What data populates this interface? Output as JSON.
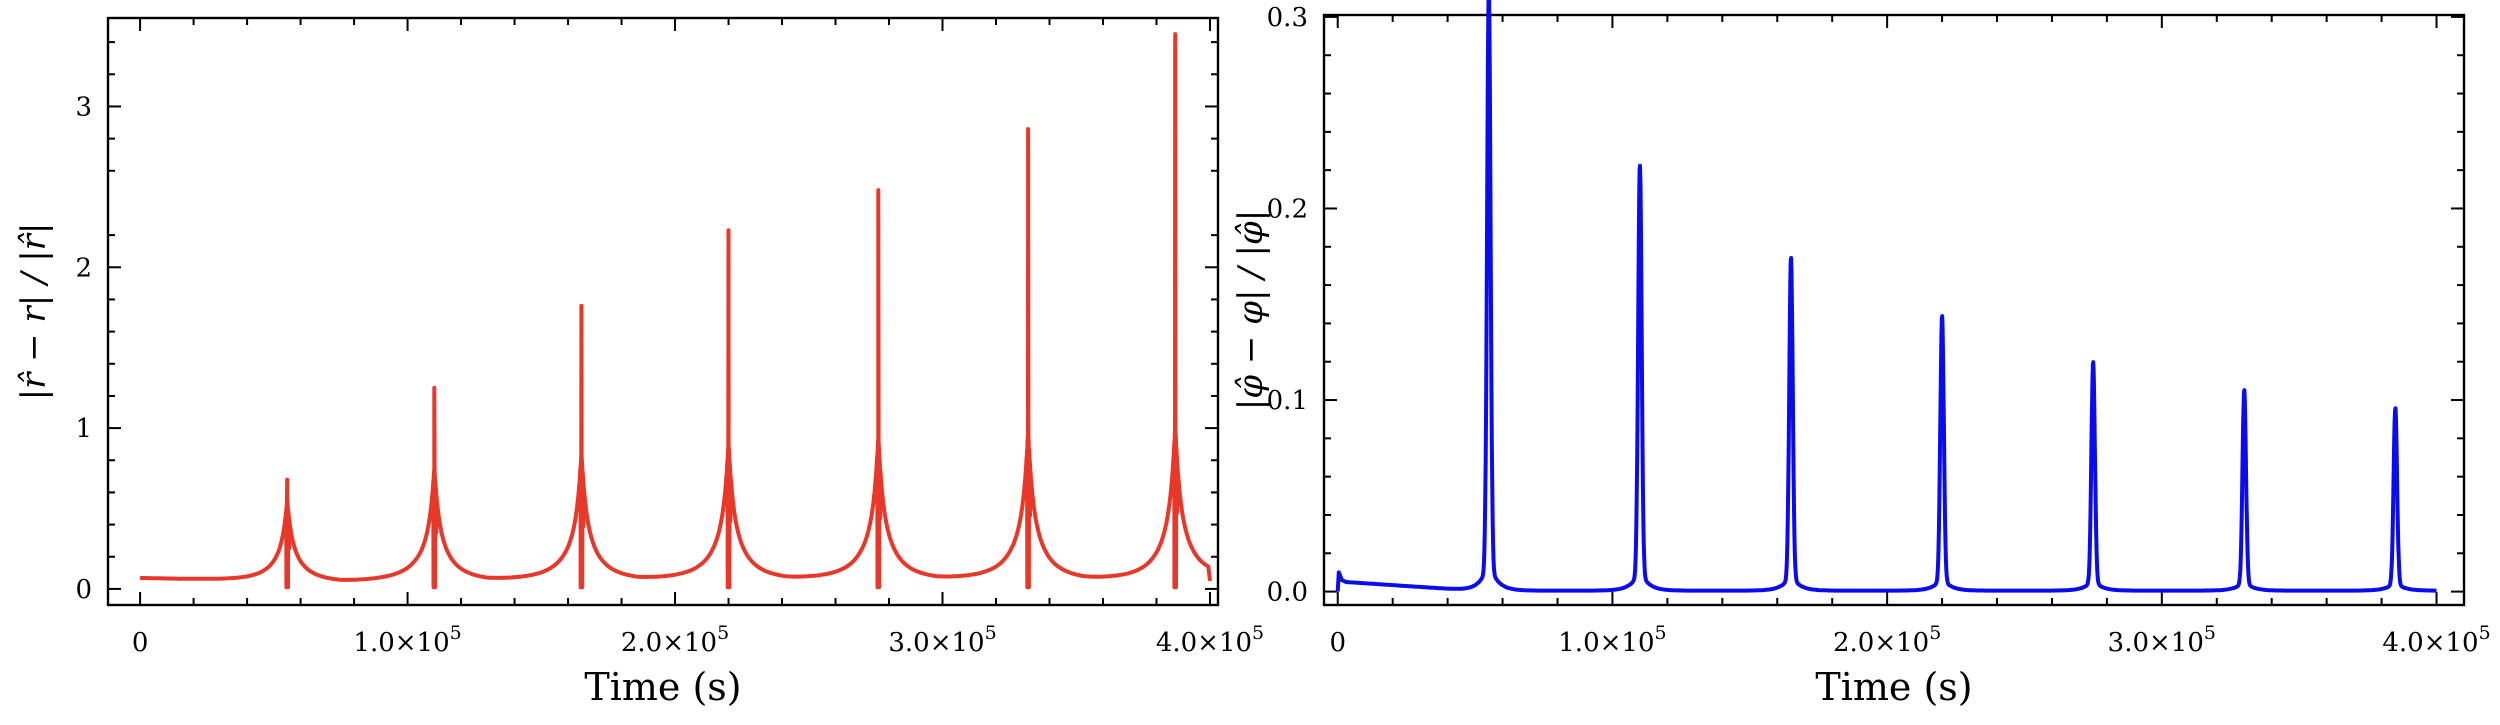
{
  "chart_data": [
    {
      "type": "line",
      "title": "",
      "xlabel": "Time (s)",
      "ylabel": "|r̂ − r| / |r̂|",
      "color": "#e8382a",
      "xlim": [
        -12000,
        403000
      ],
      "ylim": [
        -0.1,
        3.55
      ],
      "xticks": [
        0,
        100000,
        200000,
        300000,
        400000
      ],
      "xtick_labels": [
        {
          "mant": "0",
          "exp": ""
        },
        {
          "mant": "1.0×10",
          "exp": "5"
        },
        {
          "mant": "2.0×10",
          "exp": "5"
        },
        {
          "mant": "3.0×10",
          "exp": "5"
        },
        {
          "mant": "4.0×10",
          "exp": "5"
        }
      ],
      "yticks": [
        0,
        1,
        2,
        3
      ],
      "ytick_labels": [
        "0",
        "1",
        "2",
        "3"
      ],
      "baseline": 0.005,
      "dips": [
        {
          "t": 75000,
          "v": 0.0
        },
        {
          "t": 130000,
          "v": 0.0
        },
        {
          "t": 186000,
          "v": 0.0
        },
        {
          "t": 242000,
          "v": 0.0
        },
        {
          "t": 298000,
          "v": 0.0
        },
        {
          "t": 353000,
          "v": 0.0
        }
      ],
      "end_value": 0.05,
      "x_end": 400000,
      "peaks": [
        {
          "t": 55000,
          "peak": 0.68,
          "shoulder": 0.42,
          "zero_after": 0.01
        },
        {
          "t": 110000,
          "peak": 1.25,
          "shoulder": 0.58,
          "zero_after": 0.01
        },
        {
          "t": 165000,
          "peak": 1.76,
          "shoulder": 0.65,
          "zero_after": 0.01
        },
        {
          "t": 220000,
          "peak": 2.23,
          "shoulder": 0.7,
          "zero_after": 0.01
        },
        {
          "t": 276000,
          "peak": 2.48,
          "shoulder": 0.73,
          "zero_after": 0.01
        },
        {
          "t": 332000,
          "peak": 2.86,
          "shoulder": 0.76,
          "zero_after": 0.01
        },
        {
          "t": 387000,
          "peak": 3.45,
          "shoulder": 0.79,
          "zero_after": 0.01
        }
      ]
    },
    {
      "type": "line",
      "title": "",
      "xlabel": "Time (s)",
      "ylabel": "|φ̂ − φ| / |φ̂|",
      "color": "#0b0bf0",
      "xlim": [
        -5000,
        410000
      ],
      "ylim": [
        -0.007,
        0.301
      ],
      "xticks": [
        0,
        100000,
        200000,
        300000,
        400000
      ],
      "xtick_labels": [
        {
          "mant": "0",
          "exp": ""
        },
        {
          "mant": "1.0×10",
          "exp": "5"
        },
        {
          "mant": "2.0×10",
          "exp": "5"
        },
        {
          "mant": "3.0×10",
          "exp": "5"
        },
        {
          "mant": "4.0×10",
          "exp": "5"
        }
      ],
      "yticks": [
        0,
        0.1,
        0.2,
        0.3
      ],
      "ytick_labels": [
        "0.0",
        "0.1",
        "0.2",
        "0.3"
      ],
      "start_spike": 0.01,
      "start_value": 0.006,
      "x_end": 400000,
      "peaks": [
        {
          "t": 55000,
          "peak": 0.298
        },
        {
          "t": 110000,
          "peak": 0.212
        },
        {
          "t": 165000,
          "peak": 0.166
        },
        {
          "t": 220000,
          "peak": 0.137
        },
        {
          "t": 275000,
          "peak": 0.114
        },
        {
          "t": 330000,
          "peak": 0.1
        },
        {
          "t": 385000,
          "peak": 0.091
        }
      ]
    }
  ]
}
